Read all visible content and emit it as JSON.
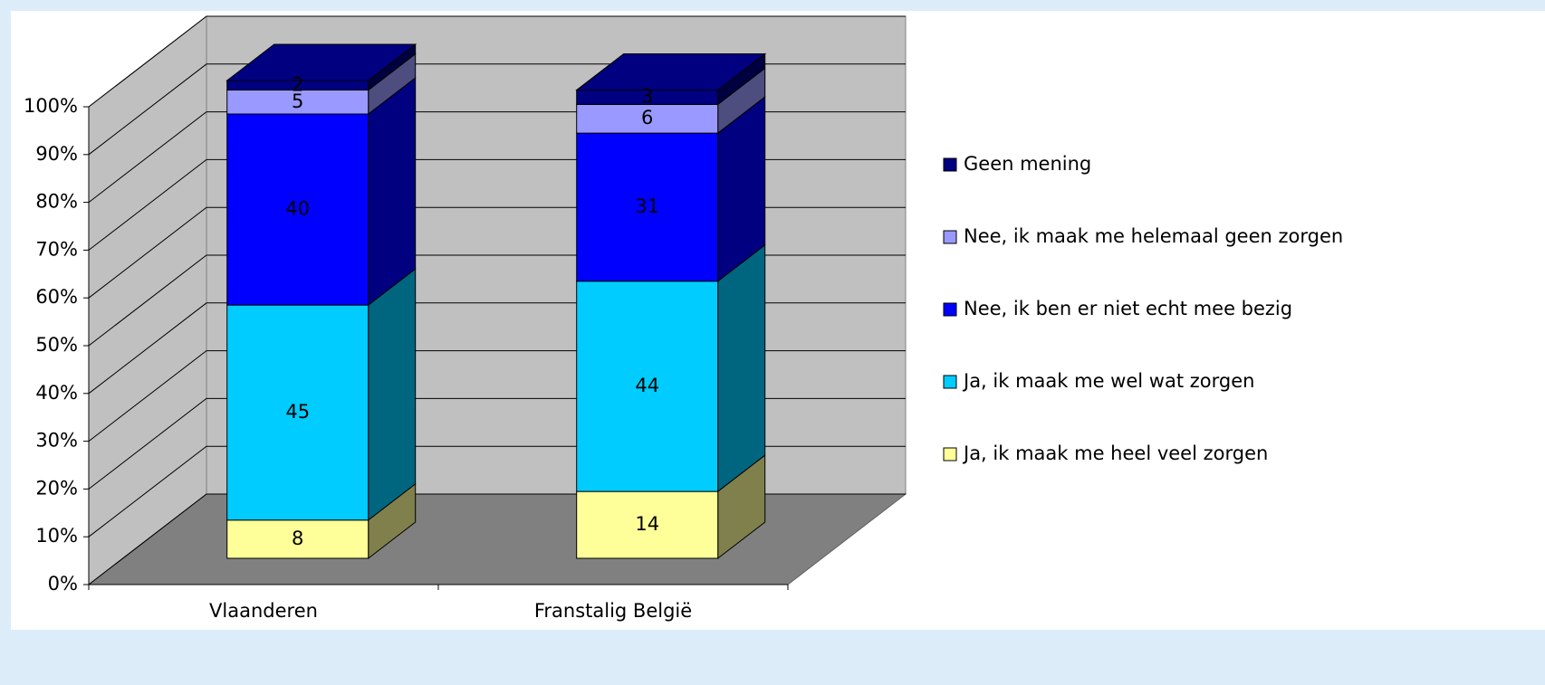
{
  "chart_data": {
    "type": "bar3d_stacked",
    "categories": [
      "Vlaanderen",
      "Franstalig België"
    ],
    "series": [
      {
        "name": "Ja, ik maak me heel veel zorgen",
        "color": "#ffff99",
        "values": [
          8,
          14
        ]
      },
      {
        "name": "Ja, ik maak me wel wat zorgen",
        "color": "#00ccff",
        "values": [
          45,
          44
        ]
      },
      {
        "name": "Nee, ik ben er niet echt mee bezig",
        "color": "#0000ff",
        "values": [
          40,
          31
        ]
      },
      {
        "name": "Nee, ik maak me helemaal geen zorgen",
        "color": "#9999ff",
        "values": [
          5,
          6
        ]
      },
      {
        "name": "Geen mening",
        "color": "#000080",
        "values": [
          2,
          3
        ]
      }
    ],
    "ylim": [
      0,
      100
    ],
    "yticks": [
      {
        "value": 0,
        "label": "0%"
      },
      {
        "value": 10,
        "label": "10%"
      },
      {
        "value": 20,
        "label": "20%"
      },
      {
        "value": 30,
        "label": "30%"
      },
      {
        "value": 40,
        "label": "40%"
      },
      {
        "value": 50,
        "label": "50%"
      },
      {
        "value": 60,
        "label": "60%"
      },
      {
        "value": 70,
        "label": "70%"
      },
      {
        "value": 80,
        "label": "80%"
      },
      {
        "value": 90,
        "label": "90%"
      },
      {
        "value": 100,
        "label": "100%"
      }
    ],
    "grid": true,
    "legend": "right"
  }
}
